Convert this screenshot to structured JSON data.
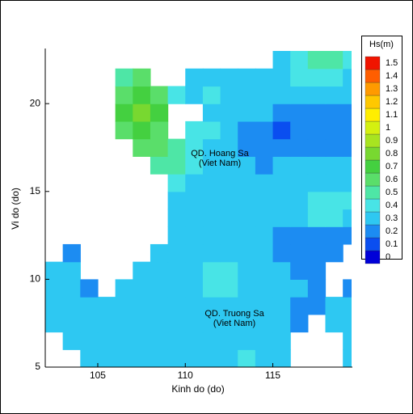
{
  "chart_data": {
    "type": "contour",
    "xlabel": "Kinh do (do)",
    "ylabel": "Vi do (do)",
    "xlim": [
      102,
      119.5
    ],
    "ylim": [
      5,
      23
    ],
    "xticks": [
      105,
      110,
      115
    ],
    "yticks": [
      5,
      10,
      15,
      20
    ],
    "x": [
      102,
      103,
      104,
      105,
      106,
      107,
      108,
      109,
      110,
      111,
      112,
      113,
      114,
      115,
      116,
      117,
      118,
      119
    ],
    "y": [
      5,
      6,
      7,
      8,
      9,
      10,
      11,
      12,
      13,
      14,
      15,
      16,
      17,
      18,
      19,
      20,
      21,
      22
    ],
    "z": [
      [
        null,
        null,
        0.3,
        0.3,
        0.3,
        0.3,
        0.3,
        0.3,
        0.3,
        0.3,
        0.3,
        0.4,
        0.3,
        0.3,
        null,
        null,
        null,
        0.3
      ],
      [
        null,
        0.3,
        0.3,
        0.3,
        0.3,
        0.3,
        0.3,
        0.3,
        0.3,
        0.3,
        0.3,
        0.3,
        0.3,
        0.3,
        null,
        null,
        null,
        0.3
      ],
      [
        0.3,
        0.3,
        0.3,
        0.3,
        0.3,
        0.3,
        0.3,
        0.3,
        0.3,
        0.3,
        0.3,
        0.3,
        0.3,
        0.3,
        0.2,
        null,
        0.3,
        0.3
      ],
      [
        0.3,
        0.3,
        0.3,
        0.3,
        0.3,
        0.3,
        0.3,
        0.3,
        0.3,
        0.3,
        0.3,
        0.3,
        0.3,
        0.3,
        0.2,
        0.2,
        0.3,
        0.3
      ],
      [
        0.3,
        0.3,
        0.2,
        null,
        0.3,
        0.3,
        0.3,
        0.3,
        0.3,
        0.4,
        0.4,
        0.3,
        0.3,
        0.3,
        0.3,
        0.2,
        null,
        0.2
      ],
      [
        0.3,
        0.3,
        null,
        null,
        null,
        0.3,
        0.3,
        0.3,
        0.3,
        0.4,
        0.4,
        0.3,
        0.3,
        0.3,
        0.2,
        0.2,
        null,
        null
      ],
      [
        null,
        0.2,
        null,
        null,
        null,
        null,
        0.3,
        0.3,
        0.3,
        0.3,
        0.3,
        0.3,
        0.3,
        0.2,
        0.2,
        0.2,
        0.2,
        null
      ],
      [
        null,
        null,
        null,
        null,
        null,
        null,
        null,
        0.3,
        0.3,
        0.3,
        0.3,
        0.3,
        0.3,
        0.2,
        0.2,
        0.2,
        0.2,
        0.2
      ],
      [
        null,
        null,
        null,
        null,
        null,
        null,
        null,
        0.3,
        0.3,
        0.3,
        0.3,
        0.3,
        0.3,
        0.3,
        0.3,
        0.4,
        0.4,
        0.3
      ],
      [
        null,
        null,
        null,
        null,
        null,
        null,
        null,
        0.3,
        0.3,
        0.3,
        0.3,
        0.3,
        0.3,
        0.3,
        0.3,
        0.4,
        0.4,
        0.4
      ],
      [
        null,
        null,
        null,
        null,
        null,
        null,
        null,
        0.4,
        0.3,
        0.3,
        0.3,
        0.3,
        0.3,
        0.3,
        0.3,
        0.3,
        0.3,
        0.3
      ],
      [
        null,
        null,
        null,
        null,
        null,
        null,
        0.5,
        0.5,
        0.4,
        0.3,
        0.3,
        0.3,
        0.2,
        0.3,
        0.3,
        0.3,
        0.3,
        0.3
      ],
      [
        null,
        null,
        null,
        null,
        null,
        0.6,
        0.6,
        0.5,
        0.4,
        0.3,
        0.3,
        0.2,
        0.2,
        0.2,
        0.2,
        0.2,
        0.2,
        0.2
      ],
      [
        null,
        null,
        null,
        null,
        0.6,
        0.7,
        0.6,
        null,
        0.4,
        0.4,
        0.3,
        0.2,
        0.2,
        0.1,
        0.2,
        0.2,
        0.2,
        0.2
      ],
      [
        null,
        null,
        null,
        null,
        0.7,
        0.8,
        0.7,
        null,
        null,
        0.3,
        0.3,
        0.3,
        0.3,
        0.2,
        0.2,
        0.2,
        0.2,
        0.2
      ],
      [
        null,
        null,
        null,
        null,
        0.6,
        0.7,
        0.6,
        0.4,
        0.3,
        0.4,
        0.3,
        0.3,
        0.3,
        0.3,
        0.3,
        0.3,
        0.3,
        0.3
      ],
      [
        null,
        null,
        null,
        null,
        0.5,
        0.6,
        null,
        null,
        0.3,
        0.3,
        0.3,
        0.3,
        0.3,
        0.3,
        0.4,
        0.4,
        0.4,
        0.3
      ],
      [
        null,
        null,
        null,
        null,
        null,
        null,
        null,
        null,
        null,
        null,
        null,
        null,
        null,
        0.3,
        0.4,
        0.5,
        0.5,
        0.4
      ]
    ],
    "colorbar": {
      "title": "Hs(m)",
      "levels": [
        0,
        0.1,
        0.2,
        0.3,
        0.4,
        0.5,
        0.6,
        0.7,
        0.8,
        0.9,
        1,
        1.1,
        1.2,
        1.3,
        1.4,
        1.5
      ],
      "colors": [
        "#0000d8",
        "#0a4ef0",
        "#1c8cf2",
        "#2ec8f2",
        "#48e4e6",
        "#4ee6a6",
        "#5ade6a",
        "#44d040",
        "#78d830",
        "#a8e420",
        "#d4f010",
        "#ffee00",
        "#ffc800",
        "#ff9a00",
        "#ff5e00",
        "#f01400"
      ]
    },
    "annotations": [
      "QD. Hoang Sa",
      "(Viet Nam)",
      "QD. Truong Sa",
      "(Viet Nam)"
    ]
  }
}
